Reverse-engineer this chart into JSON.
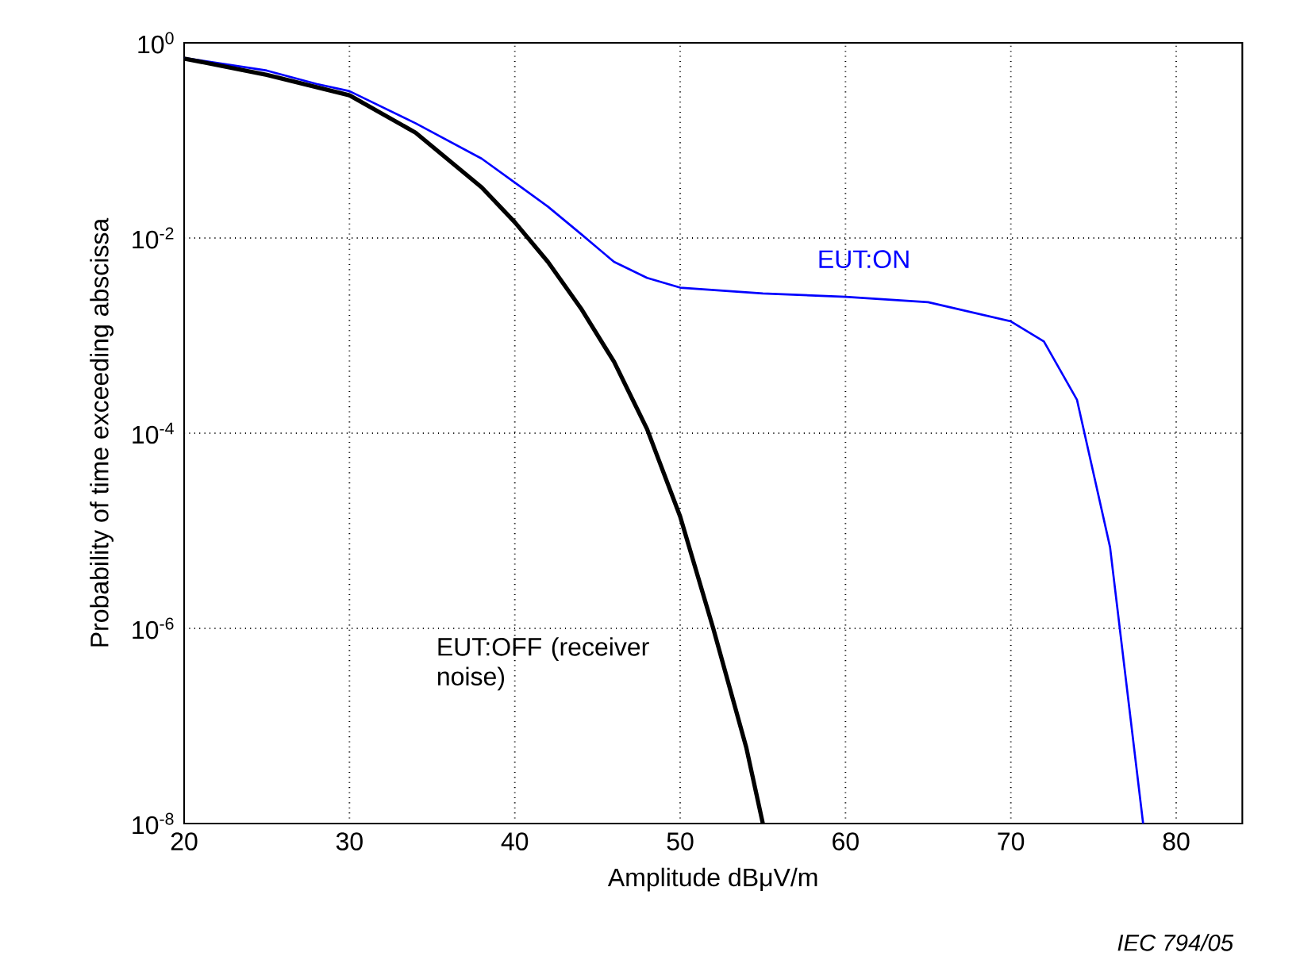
{
  "chart_data": {
    "type": "line",
    "xlabel": "Amplitude    dBμV/m",
    "ylabel": "Probability of time exceeding abscissa",
    "log": "y",
    "grid": true,
    "legend": false,
    "xlim": [
      20,
      84
    ],
    "xticks": [
      20,
      30,
      40,
      50,
      60,
      70,
      80
    ],
    "ylim": [
      1e-08,
      1
    ],
    "yticks": [
      {
        "value": 1,
        "label": "10$^{0}$"
      },
      {
        "value": 0.01,
        "label": "10$^{-2}$"
      },
      {
        "value": 0.0001,
        "label": "10$^{-4}$"
      },
      {
        "value": 1e-06,
        "label": "10$^{-6}$"
      },
      {
        "value": 1e-08,
        "label": "10$^{-8}$"
      }
    ],
    "series": [
      {
        "name": "EUT:ON",
        "color": "#0000ff",
        "x": [
          20,
          25,
          28,
          30,
          34,
          38,
          40,
          42,
          44,
          46,
          48,
          50,
          55,
          60,
          65,
          70,
          72,
          74,
          76,
          78
        ],
        "values": [
          0.7,
          0.52,
          0.38,
          0.32,
          0.15,
          0.065,
          0.037,
          0.021,
          0.011,
          0.0057,
          0.0039,
          0.0031,
          0.0027,
          0.0025,
          0.0022,
          0.0014,
          0.00087,
          0.00022,
          6.8e-06,
          1e-08
        ]
      },
      {
        "name": "EUT:OFF (receiver noise)",
        "color": "#000000",
        "x": [
          20,
          25,
          30,
          34,
          38,
          40,
          42,
          44,
          46,
          48,
          50,
          52,
          54,
          55
        ],
        "values": [
          0.69,
          0.47,
          0.29,
          0.12,
          0.033,
          0.0145,
          0.0057,
          0.0019,
          0.00054,
          0.00011,
          1.4e-05,
          1e-06,
          6e-08,
          1e-08
        ]
      }
    ],
    "annotations": [
      "IEC   794/05"
    ]
  }
}
